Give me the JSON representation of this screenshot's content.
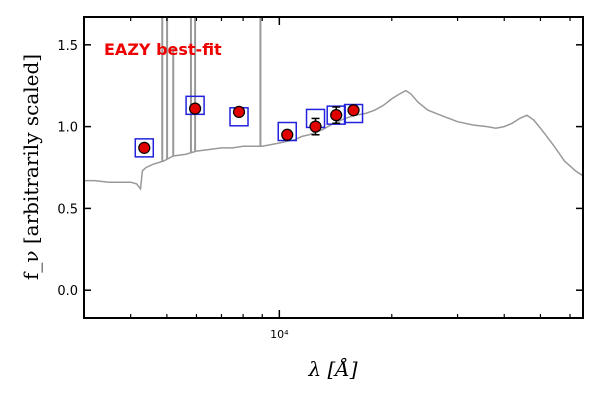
{
  "chart_data": {
    "type": "scatter",
    "title": "",
    "annotation": "EAZY best-fit",
    "xlabel": "λ [Å]",
    "ylabel": "f_ν [arbitrarily scaled]",
    "x_scale": "log",
    "xlim": [
      3000,
      65000
    ],
    "ylim": [
      -0.17,
      1.67
    ],
    "yticks": [
      0.0,
      0.5,
      1.0,
      1.5
    ],
    "ytick_labels": [
      "0.0",
      "0.5",
      "1.0",
      "1.5"
    ],
    "xtick_labels": [
      {
        "value": 10000,
        "label": "10⁴"
      }
    ],
    "colors": {
      "photometry": "#e00000",
      "model_bands": "#2222dd",
      "template": "#999999",
      "annotation": "#ee0000"
    },
    "photometry": [
      {
        "x": 4350,
        "y": 0.87,
        "err": 0.0
      },
      {
        "x": 5950,
        "y": 1.11,
        "err": 0.0
      },
      {
        "x": 7800,
        "y": 1.09,
        "err": 0.0
      },
      {
        "x": 10500,
        "y": 0.95,
        "err": 0.0
      },
      {
        "x": 12500,
        "y": 1.0,
        "err": 0.05
      },
      {
        "x": 14200,
        "y": 1.07,
        "err": 0.05
      },
      {
        "x": 15800,
        "y": 1.1,
        "err": 0.0
      }
    ],
    "model_band_fluxes": [
      {
        "x": 4350,
        "y": 0.87
      },
      {
        "x": 5950,
        "y": 1.13
      },
      {
        "x": 7800,
        "y": 1.06
      },
      {
        "x": 10500,
        "y": 0.97
      },
      {
        "x": 12500,
        "y": 1.05
      },
      {
        "x": 14200,
        "y": 1.07
      },
      {
        "x": 15800,
        "y": 1.08
      }
    ],
    "template_continuum": {
      "x": [
        3000,
        3200,
        3500,
        3800,
        4000,
        4150,
        4250,
        4300,
        4400,
        4600,
        4900,
        5200,
        5600,
        6000,
        6500,
        7000,
        7500,
        8000,
        8500,
        9000,
        9500,
        10000,
        10500,
        11000,
        11500,
        12000,
        13000,
        14000,
        15000,
        16000,
        17000,
        18000,
        19000,
        20000,
        21000,
        21800,
        22500,
        23500,
        25000,
        27000,
        30000,
        33000,
        36000,
        38000,
        40000,
        42000,
        44000,
        46000,
        48000,
        50000,
        52000,
        54000,
        56000,
        58000,
        60000,
        62000,
        65000
      ],
      "y": [
        0.67,
        0.67,
        0.66,
        0.66,
        0.66,
        0.65,
        0.62,
        0.73,
        0.75,
        0.77,
        0.79,
        0.82,
        0.83,
        0.85,
        0.86,
        0.87,
        0.87,
        0.88,
        0.88,
        0.88,
        0.89,
        0.9,
        0.91,
        0.92,
        0.94,
        0.95,
        0.98,
        1.02,
        1.05,
        1.07,
        1.08,
        1.1,
        1.13,
        1.17,
        1.2,
        1.22,
        1.2,
        1.15,
        1.1,
        1.07,
        1.03,
        1.01,
        1.0,
        0.99,
        1.0,
        1.02,
        1.05,
        1.07,
        1.04,
        0.99,
        0.94,
        0.89,
        0.84,
        0.79,
        0.76,
        0.73,
        0.7
      ]
    },
    "template_emission_lines": [
      {
        "x": 4860,
        "peak": 1.7
      },
      {
        "x": 5007,
        "peak": 1.7
      },
      {
        "x": 5200,
        "peak": 1.48
      },
      {
        "x": 5800,
        "peak": 1.7
      },
      {
        "x": 5950,
        "peak": 1.7
      },
      {
        "x": 8900,
        "peak": 1.7
      }
    ]
  }
}
